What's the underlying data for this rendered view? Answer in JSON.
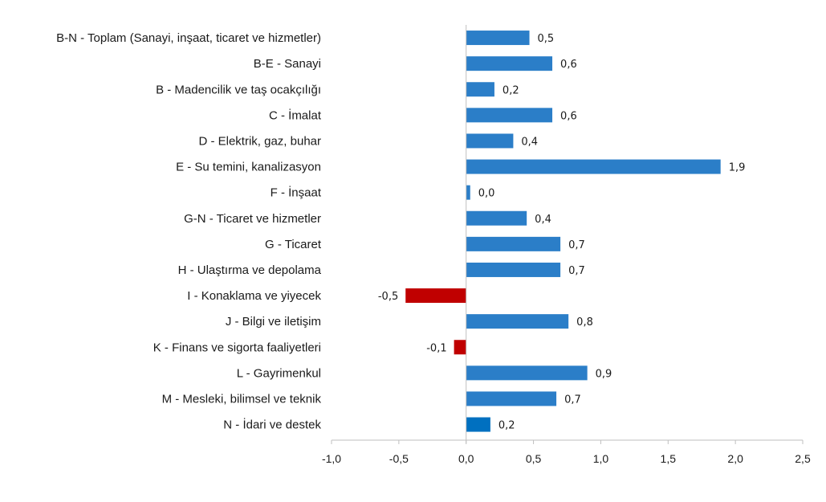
{
  "chart_data": {
    "type": "bar",
    "orientation": "horizontal",
    "categories": [
      "B-N - Toplam (Sanayi, inşaat, ticaret ve hizmetler)",
      "B-E - Sanayi",
      "B - Madencilik ve taş ocakçılığı",
      "C - İmalat",
      "D - Elektrik, gaz, buhar",
      "E - Su temini, kanalizasyon",
      "F - İnşaat",
      "G-N - Ticaret ve hizmetler",
      "G - Ticaret",
      "H - Ulaştırma ve depolama",
      "I - Konaklama ve yiyecek",
      "J - Bilgi ve iletişim",
      "K - Finans ve sigorta faaliyetleri",
      "L - Gayrimenkul",
      "M - Mesleki, bilimsel ve teknik",
      "N - İdari ve destek"
    ],
    "values": [
      0.47,
      0.64,
      0.21,
      0.64,
      0.35,
      1.89,
      0.03,
      0.45,
      0.7,
      0.7,
      -0.45,
      0.76,
      -0.09,
      0.9,
      0.67,
      0.18
    ],
    "value_labels": [
      "0,5",
      "0,6",
      "0,2",
      "0,6",
      "0,4",
      "1,9",
      "0,0",
      "0,4",
      "0,7",
      "0,7",
      "-0,5",
      "0,8",
      "-0,1",
      "0,9",
      "0,7",
      "0,2"
    ],
    "xlim": [
      -1.0,
      2.5
    ],
    "xticks": [
      -1.0,
      -0.5,
      0.0,
      0.5,
      1.0,
      1.5,
      2.0,
      2.5
    ],
    "xtick_labels": [
      "-1,0",
      "-0,5",
      "0,0",
      "0,5",
      "1,0",
      "1,5",
      "2,0",
      "2,5"
    ],
    "grid": false,
    "legend": "none",
    "colors": {
      "positive": "#2b7ec8",
      "negative": "#c00000",
      "last": "#0070c0",
      "axis": "#bfbfbf"
    }
  }
}
